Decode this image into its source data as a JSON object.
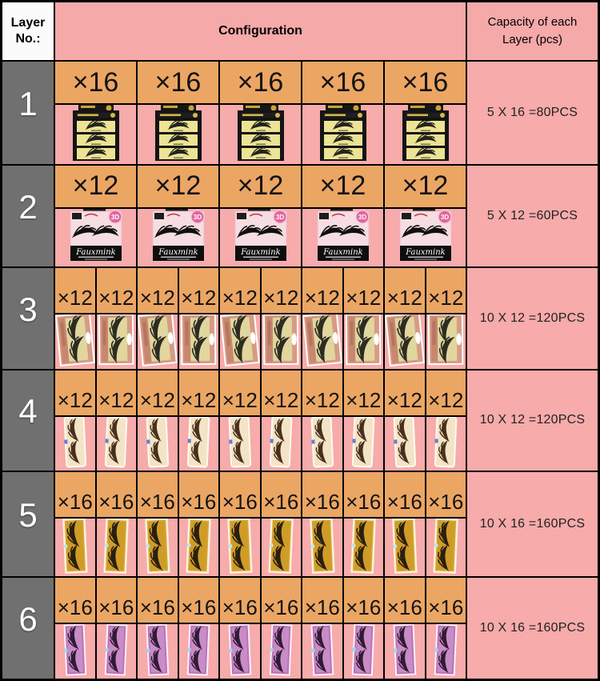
{
  "header": {
    "layer_no_line1": "Layer",
    "layer_no_line2": "No.:",
    "configuration": "Configuration",
    "capacity_line1": "Capacity of each",
    "capacity_line2": "Layer (pcs)"
  },
  "colors": {
    "pink_bg": "#f7abab",
    "orange_cell": "#eba664",
    "gray_cell": "#707070",
    "white_cell": "#fbfbfb",
    "border": "#000000"
  },
  "product_labels": {
    "fauxmink_brand": "Fauxmink",
    "badge_3d": "3D"
  },
  "layers": [
    {
      "no": "1",
      "cells": 5,
      "multiplier": "×16",
      "capacity": "5 X 16 =80PCS",
      "product": "black-tray-3pair-lashes"
    },
    {
      "no": "2",
      "cells": 5,
      "multiplier": "×12",
      "capacity": "5 X 12 =60PCS",
      "product": "fauxmink-pink-box"
    },
    {
      "no": "3",
      "cells": 10,
      "multiplier": "×12",
      "capacity": "10 X 12 =120PCS",
      "product": "rose-gold-lash-box"
    },
    {
      "no": "4",
      "cells": 10,
      "multiplier": "×12",
      "capacity": "10 X 12 =120PCS",
      "product": "cream-lash-pack"
    },
    {
      "no": "5",
      "cells": 10,
      "multiplier": "×16",
      "capacity": "10 X 16 =160PCS",
      "product": "gold-lash-pack"
    },
    {
      "no": "6",
      "cells": 10,
      "multiplier": "×16",
      "capacity": "10 X 16 =160PCS",
      "product": "purple-lash-pack"
    }
  ]
}
